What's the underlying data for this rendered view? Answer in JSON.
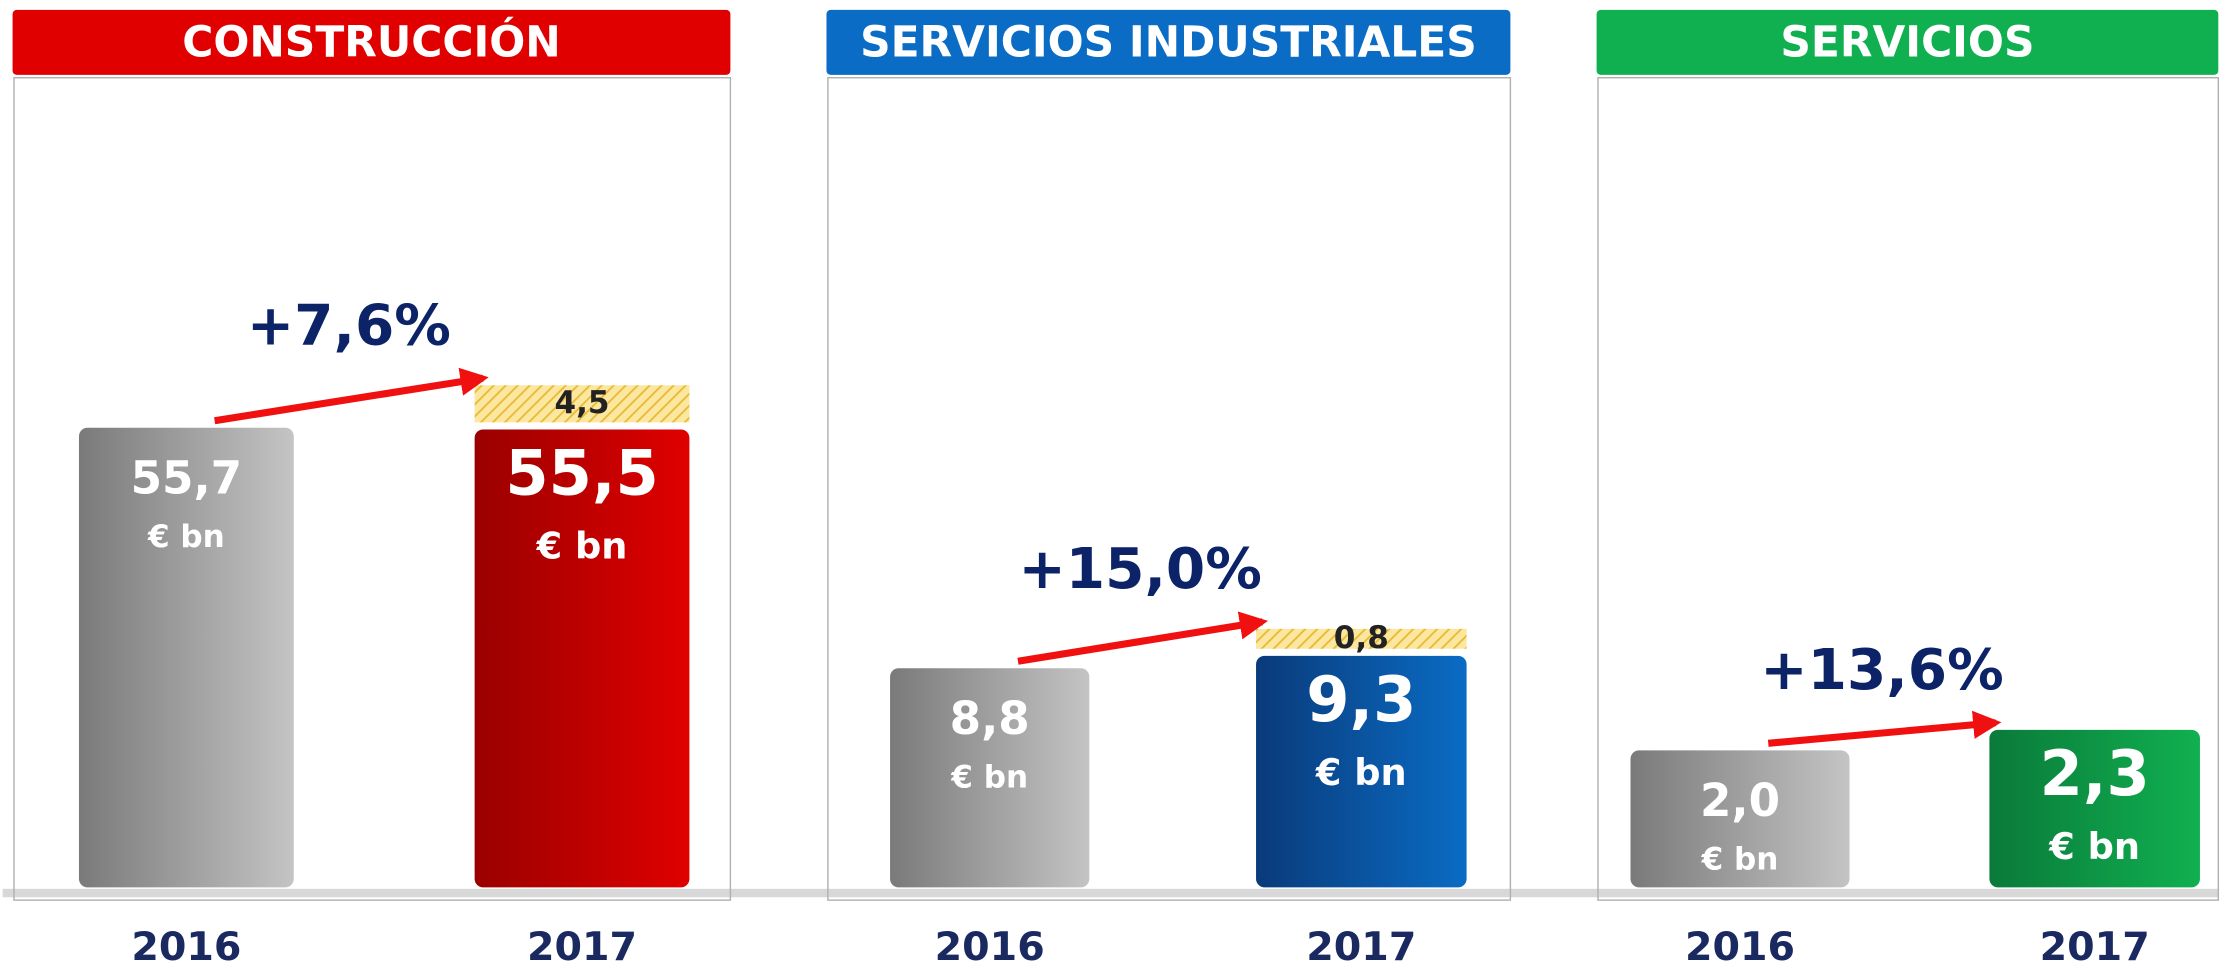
{
  "chart_data": [
    {
      "type": "bar",
      "title": "CONSTRUCCIÓN",
      "color": "#e00000",
      "dark": "#9a0000",
      "categories": [
        "2016",
        "2017"
      ],
      "values": [
        55.7,
        55.5
      ],
      "value_labels": [
        "55,7",
        "55,5"
      ],
      "unit": "€ bn",
      "extra_values": [
        null,
        4.5
      ],
      "extra_labels": [
        null,
        "4,5"
      ],
      "annotation": "+7,6%",
      "ylim": [
        0,
        68.5
      ]
    },
    {
      "type": "bar",
      "title": "SERVICIOS INDUSTRIALES",
      "color": "#0a6cc4",
      "dark": "#0a3a7a",
      "categories": [
        "2016",
        "2017"
      ],
      "values": [
        8.8,
        9.3
      ],
      "value_labels": [
        "8,8",
        "9,3"
      ],
      "unit": "€ bn",
      "extra_values": [
        null,
        0.8
      ],
      "extra_labels": [
        null,
        "0,8"
      ],
      "annotation": "+15,0%",
      "ylim": [
        0,
        22.7
      ]
    },
    {
      "type": "bar",
      "title": "SERVICIOS",
      "color": "#10b050",
      "dark": "#0a7a3a",
      "categories": [
        "2016",
        "2017"
      ],
      "values": [
        2.0,
        2.3
      ],
      "value_labels": [
        "2,0",
        "2,3"
      ],
      "unit": "€ bn",
      "annotation": "+13,6%",
      "ylim": [
        0,
        8.25
      ]
    }
  ]
}
